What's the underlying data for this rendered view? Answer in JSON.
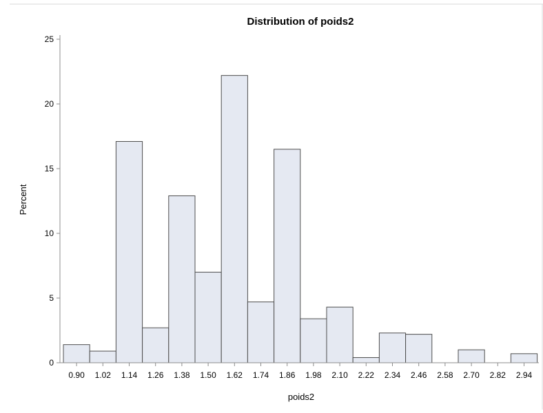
{
  "chart_data": {
    "type": "bar",
    "title": "Distribution of poids2",
    "xlabel": "poids2",
    "ylabel": "Percent",
    "ylim": [
      0,
      25
    ],
    "y_ticks": [
      "0",
      "5",
      "10",
      "15",
      "20",
      "25"
    ],
    "categories": [
      "0.90",
      "1.02",
      "1.14",
      "1.26",
      "1.38",
      "1.50",
      "1.62",
      "1.74",
      "1.86",
      "1.98",
      "2.10",
      "2.22",
      "2.34",
      "2.46",
      "2.58",
      "2.70",
      "2.82",
      "2.94"
    ],
    "values": [
      1.4,
      0.9,
      17.1,
      2.7,
      12.9,
      7.0,
      22.2,
      4.7,
      16.5,
      3.4,
      4.3,
      0.4,
      2.3,
      2.2,
      0.0,
      1.0,
      0.0,
      0.7
    ],
    "grid": false,
    "legend": "none",
    "colors": {
      "bar_fill": "#e5e9f2",
      "bar_stroke": "#4d4d4d",
      "axis": "#8c8c8c"
    }
  }
}
